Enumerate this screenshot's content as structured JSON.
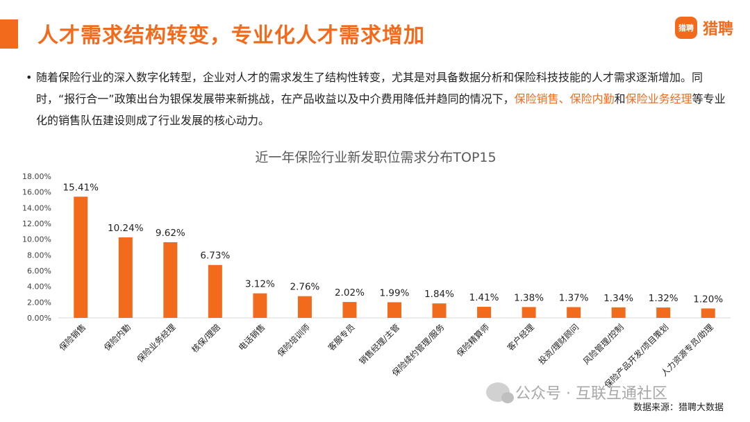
{
  "page": {
    "title": "人才需求结构转变，专业化人才需求增加",
    "brand": {
      "mark": "猎聘",
      "name": "猎聘"
    },
    "bullet_symbol": "•",
    "bullet_parts": [
      {
        "text": "随着保险行业的深入数字化转型，企业对人才的需求发生了结构性转变，尤其是对具备数据分析和保险科技技能的人才需求逐渐增加。同时，“报行合一”政策出台为银保发展带来新挑战，在产品收益以及中介费用降低并趋同的情况下，",
        "highlight": false
      },
      {
        "text": "保险销售、保险内勤",
        "highlight": true
      },
      {
        "text": "和",
        "highlight": false
      },
      {
        "text": "保险业务经理",
        "highlight": true
      },
      {
        "text": "等专业化的销售队伍建设则成了行业发展的核心动力。",
        "highlight": false
      }
    ],
    "watermark": "公众号 · 互联互通社区",
    "source": "数据来源：猎聘大数据"
  },
  "colors": {
    "accent": "#f26b1d",
    "bar": "#f26b1d",
    "text": "#222222",
    "axis": "#d9d9d9",
    "title_gray": "#595959"
  },
  "chart_data": {
    "type": "bar",
    "title": "近一年保险行业新发职位需求分布TOP15",
    "categories": [
      "保险销售",
      "保险内勤",
      "保险业务经理",
      "核保/理赔",
      "电话销售",
      "保险培训师",
      "客服专员",
      "销售经理/主管",
      "保险续约管理/服务",
      "保险精算师",
      "客户经理",
      "投资/理财顾问",
      "风险管理/控制",
      "保险产品开发/项目策划",
      "人力资源专员/助理"
    ],
    "values": [
      15.41,
      10.24,
      9.62,
      6.73,
      3.12,
      2.76,
      2.02,
      1.99,
      1.84,
      1.41,
      1.38,
      1.37,
      1.34,
      1.32,
      1.2
    ],
    "value_labels": [
      "15.41%",
      "10.24%",
      "9.62%",
      "6.73%",
      "3.12%",
      "2.76%",
      "2.02%",
      "1.99%",
      "1.84%",
      "1.41%",
      "1.38%",
      "1.37%",
      "1.34%",
      "1.32%",
      "1.20%"
    ],
    "yticks": [
      "0.00%",
      "2.00%",
      "4.00%",
      "6.00%",
      "8.00%",
      "10.00%",
      "12.00%",
      "14.00%",
      "16.00%",
      "18.00%"
    ],
    "ylim": [
      0,
      18
    ],
    "grid": false,
    "legend": "none"
  }
}
